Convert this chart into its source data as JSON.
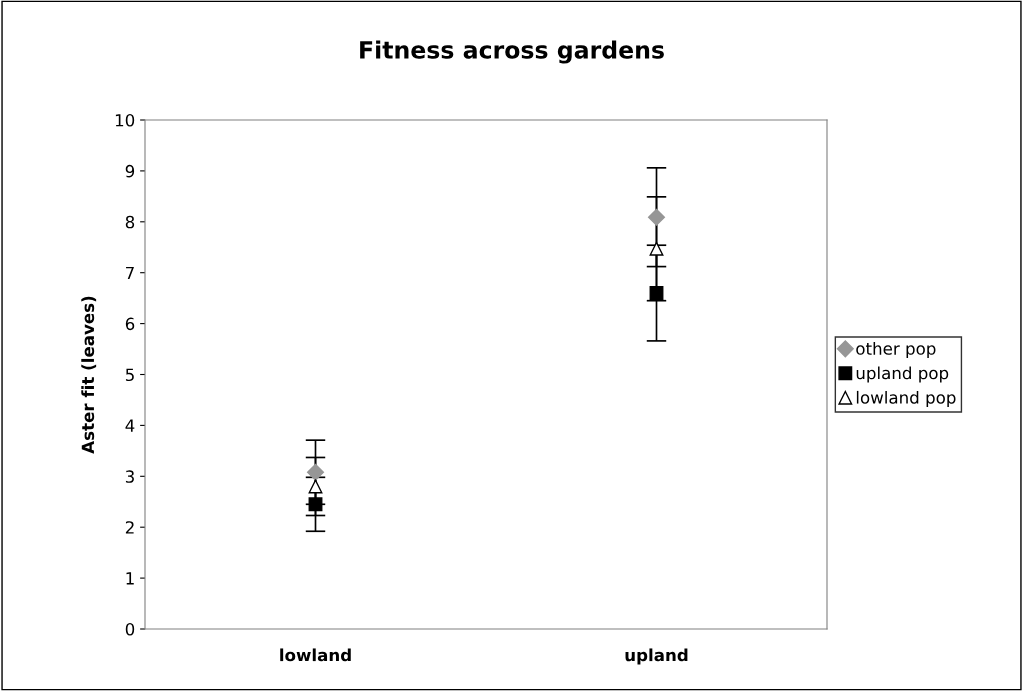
{
  "chart_data": {
    "type": "scatter",
    "title": "Fitness across gardens",
    "ylabel": "Aster fit (leaves)",
    "categories": [
      "lowland",
      "upland"
    ],
    "series": [
      {
        "name": "other pop",
        "color": "#969696",
        "marker": "diamond",
        "values": [
          3.08,
          8.09
        ],
        "errors": [
          0.63,
          0.97
        ]
      },
      {
        "name": "upland pop",
        "color": "#000000",
        "marker": "square",
        "values": [
          2.45,
          6.6
        ],
        "errors": [
          0.53,
          0.94
        ]
      },
      {
        "name": "lowland pop",
        "color": "#000000",
        "marker": "triangle",
        "values": [
          2.8,
          7.47
        ],
        "errors": [
          0.57,
          1.02
        ]
      }
    ],
    "ylim": [
      0,
      10
    ],
    "yticks": [
      0,
      1,
      2,
      3,
      4,
      5,
      6,
      7,
      8,
      9,
      10
    ],
    "grid": false,
    "legend": "right"
  }
}
